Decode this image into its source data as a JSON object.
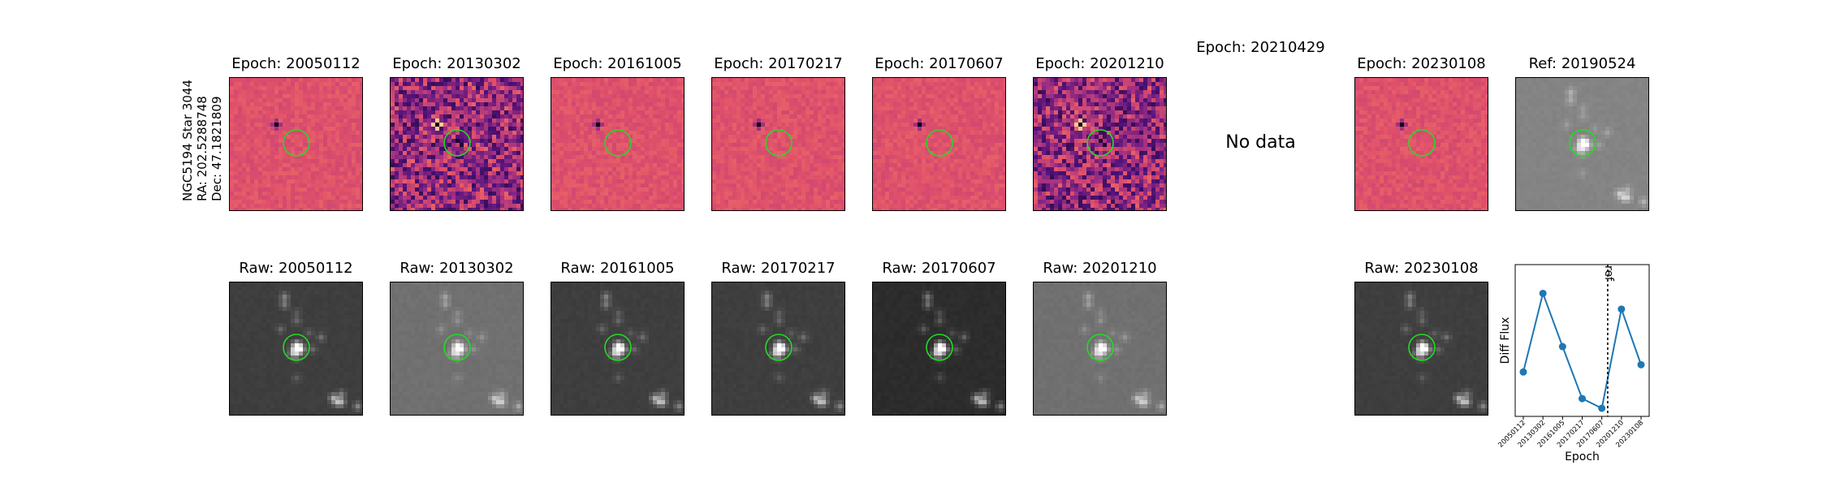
{
  "row_label": {
    "line1": "NGC5194 Star 3044",
    "line2": "RA: 202.5288748",
    "line3": "Dec: 47.1821809"
  },
  "diff_panels": [
    {
      "title": "Epoch: 20050112",
      "colormap": "magma-flat"
    },
    {
      "title": "Epoch: 20130302",
      "colormap": "magma-noisy"
    },
    {
      "title": "Epoch: 20161005",
      "colormap": "magma-flat"
    },
    {
      "title": "Epoch: 20170217",
      "colormap": "magma-flat"
    },
    {
      "title": "Epoch: 20170607",
      "colormap": "magma-flat"
    },
    {
      "title": "Epoch: 20201210",
      "colormap": "magma-noisy"
    },
    {
      "title": "Epoch: 20210429",
      "no_data": "No data"
    },
    {
      "title": "Epoch: 20230108",
      "colormap": "magma-flat"
    }
  ],
  "ref_panel": {
    "title": "Ref: 20190524"
  },
  "raw_panels": [
    {
      "title": "Raw: 20050112",
      "brightness": "dark"
    },
    {
      "title": "Raw: 20130302",
      "brightness": "light"
    },
    {
      "title": "Raw: 20161005",
      "brightness": "dark"
    },
    {
      "title": "Raw: 20170217",
      "brightness": "dark"
    },
    {
      "title": "Raw: 20170607",
      "brightness": "darker"
    },
    {
      "title": "Raw: 20201210",
      "brightness": "light"
    },
    {
      "title": "Raw: 20230108",
      "brightness": "dark"
    }
  ],
  "colors": {
    "circle": "#22dd22",
    "line": "#1f77b4",
    "diff_flat": "#e0506a",
    "diff_noisy": "#a03e86"
  },
  "chart_data": {
    "type": "line",
    "xlabel": "Epoch",
    "ylabel": "Diff Flux",
    "x": [
      "20050112",
      "20130302",
      "20161005",
      "20170217",
      "20170607",
      "20201210",
      "20230108"
    ],
    "values": [
      0.3,
      0.95,
      0.51,
      0.08,
      0.0,
      0.82,
      0.36
    ],
    "ref_line_label": "ref",
    "ref_line_position": "between 20170607 and 20201210",
    "grid": false
  }
}
